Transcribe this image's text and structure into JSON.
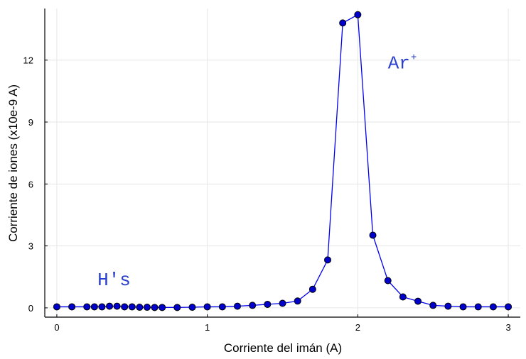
{
  "chart_data": {
    "type": "line",
    "xlabel": "Corriente del imán (A)",
    "ylabel": "Corriente de iones (x10e-9 A)",
    "xlim": [
      -0.08,
      3.08
    ],
    "ylim": [
      -0.45,
      14.5
    ],
    "xticks": [
      0,
      1,
      2,
      3
    ],
    "xtick_labels": [
      "0",
      "1",
      "2",
      "3"
    ],
    "yticks": [
      0,
      3,
      6,
      9,
      12
    ],
    "ytick_labels": [
      "0",
      "3",
      "6",
      "9",
      "12"
    ],
    "grid": true,
    "legend": "none",
    "line_color": "#0000ee",
    "marker_color": "#0000cc",
    "series": [
      {
        "x": [
          0,
          0.1,
          0.2,
          0.25,
          0.3,
          0.35,
          0.4,
          0.45,
          0.5,
          0.55,
          0.6,
          0.65,
          0.7,
          0.8,
          0.9,
          1.0,
          1.1,
          1.2,
          1.3,
          1.4,
          1.5,
          1.6,
          1.7,
          1.8,
          1.9,
          2.0,
          2.1,
          2.2,
          2.3,
          2.4,
          2.5,
          2.6,
          2.7,
          2.8,
          2.9,
          3.0
        ],
        "y": [
          0.05,
          0.05,
          0.05,
          0.05,
          0.05,
          0.08,
          0.08,
          0.05,
          0.05,
          0.03,
          0.03,
          0.02,
          0.02,
          0.02,
          0.03,
          0.05,
          0.05,
          0.08,
          0.12,
          0.17,
          0.22,
          0.33,
          0.9,
          2.32,
          13.8,
          14.2,
          3.52,
          1.32,
          0.53,
          0.32,
          0.12,
          0.08,
          0.05,
          0.05,
          0.05,
          0.05
        ]
      }
    ],
    "annotations": [
      {
        "text": "H's",
        "sup": "",
        "x": 0.27,
        "y": 1.1
      },
      {
        "text": "Ar",
        "sup": "+",
        "x": 2.2,
        "y": 11.6
      }
    ]
  }
}
